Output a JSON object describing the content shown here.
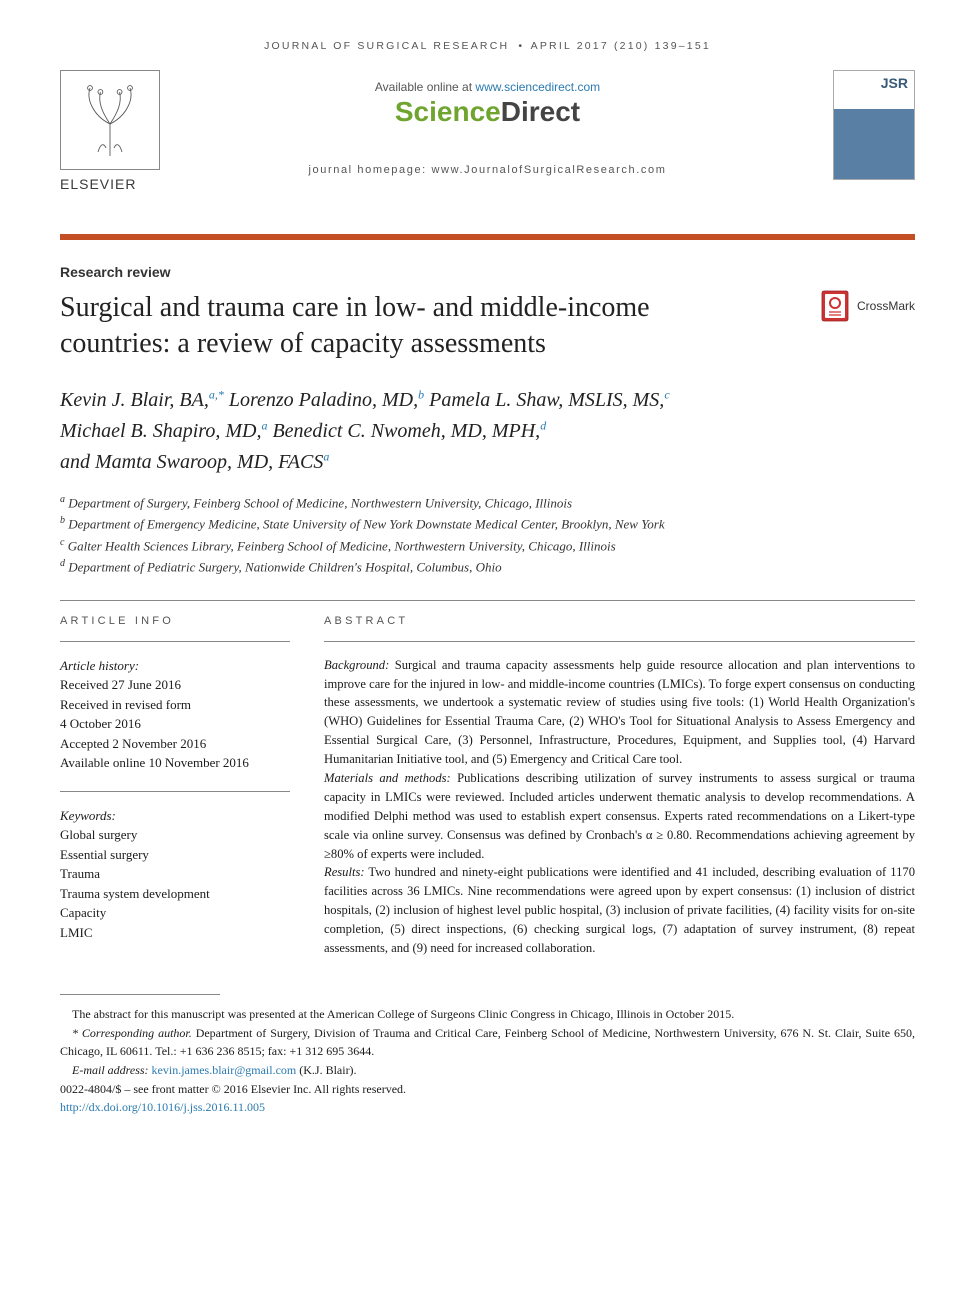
{
  "running_header": {
    "journal": "JOURNAL OF SURGICAL RESEARCH",
    "bullet": "•",
    "issue": "APRIL 2017 (210) 139–151"
  },
  "banner": {
    "available_text_prefix": "Available online at ",
    "available_text_link": "www.sciencedirect.com",
    "sd_sci": "Science",
    "sd_dir": "Direct",
    "journal_homepage_label": "journal homepage: ",
    "journal_homepage_url": "www.JournalofSurgicalResearch.com",
    "jsr_label": "JSR",
    "elsevier_label": "ELSEVIER"
  },
  "colors": {
    "accent_rule": "#c44f24",
    "link": "#2a7ab0",
    "sd_green": "#6fa52f",
    "sd_gray": "#444",
    "text": "#1a1a1a"
  },
  "fonts": {
    "title_pt": 28,
    "body_pt": 12.6,
    "authors_pt": 20,
    "affil_pt": 13
  },
  "article_type": "Research review",
  "title": "Surgical and trauma care in low- and middle-income countries: a review of capacity assessments",
  "crossmark_label": "CrossMark",
  "authors": [
    {
      "name": "Kevin J. Blair, BA,",
      "sup": "a,*"
    },
    {
      "name": "Lorenzo Paladino, MD,",
      "sup": "b"
    },
    {
      "name": "Pamela L. Shaw, MSLIS, MS,",
      "sup": "c"
    },
    {
      "name": "Michael B. Shapiro, MD,",
      "sup": "a"
    },
    {
      "name": "Benedict C. Nwomeh, MD, MPH,",
      "sup": "d"
    },
    {
      "name": "and Mamta Swaroop, MD, FACS",
      "sup": "a"
    }
  ],
  "affiliations": [
    {
      "sup": "a",
      "text": "Department of Surgery, Feinberg School of Medicine, Northwestern University, Chicago, Illinois"
    },
    {
      "sup": "b",
      "text": "Department of Emergency Medicine, State University of New York Downstate Medical Center, Brooklyn, New York"
    },
    {
      "sup": "c",
      "text": "Galter Health Sciences Library, Feinberg School of Medicine, Northwestern University, Chicago, Illinois"
    },
    {
      "sup": "d",
      "text": "Department of Pediatric Surgery, Nationwide Children's Hospital, Columbus, Ohio"
    }
  ],
  "info": {
    "heading": "ARTICLE INFO",
    "history_label": "Article history:",
    "history": [
      "Received 27 June 2016",
      "Received in revised form",
      "4 October 2016",
      "Accepted 2 November 2016",
      "Available online 10 November 2016"
    ],
    "keywords_label": "Keywords:",
    "keywords": [
      "Global surgery",
      "Essential surgery",
      "Trauma",
      "Trauma system development",
      "Capacity",
      "LMIC"
    ]
  },
  "abstract": {
    "heading": "ABSTRACT",
    "sections": [
      {
        "runin": "Background:",
        "text": " Surgical and trauma capacity assessments help guide resource allocation and plan interventions to improve care for the injured in low- and middle-income countries (LMICs). To forge expert consensus on conducting these assessments, we undertook a systematic review of studies using five tools: (1) World Health Organization's (WHO) Guidelines for Essential Trauma Care, (2) WHO's Tool for Situational Analysis to Assess Emergency and Essential Surgical Care, (3) Personnel, Infrastructure, Procedures, Equipment, and Supplies tool, (4) Harvard Humanitarian Initiative tool, and (5) Emergency and Critical Care tool."
      },
      {
        "runin": "Materials and methods:",
        "text": " Publications describing utilization of survey instruments to assess surgical or trauma capacity in LMICs were reviewed. Included articles underwent thematic analysis to develop recommendations. A modified Delphi method was used to establish expert consensus. Experts rated recommendations on a Likert-type scale via online survey. Consensus was defined by Cronbach's α ≥ 0.80. Recommendations achieving agreement by ≥80% of experts were included."
      },
      {
        "runin": "Results:",
        "text": " Two hundred and ninety-eight publications were identified and 41 included, describing evaluation of 1170 facilities across 36 LMICs. Nine recommendations were agreed upon by expert consensus: (1) inclusion of district hospitals, (2) inclusion of highest level public hospital, (3) inclusion of private facilities, (4) facility visits for on-site completion, (5) direct inspections, (6) checking surgical logs, (7) adaptation of survey instrument, (8) repeat assessments, and (9) need for increased collaboration."
      }
    ]
  },
  "footnotes": {
    "conf": "The abstract for this manuscript was presented at the American College of Surgeons Clinic Congress in Chicago, Illinois in October 2015.",
    "corr_label": "* Corresponding author.",
    "corr_text": " Department of Surgery, Division of Trauma and Critical Care, Feinberg School of Medicine, Northwestern University, 676 N. St. Clair, Suite 650, Chicago, IL 60611. Tel.: +1 636 236 8515; fax: +1 312 695 3644.",
    "email_label": "E-mail address: ",
    "email": "kevin.james.blair@gmail.com",
    "email_suffix": " (K.J. Blair).",
    "copyright": "0022-4804/$ – see front matter © 2016 Elsevier Inc. All rights reserved.",
    "doi": "http://dx.doi.org/10.1016/j.jss.2016.11.005"
  }
}
